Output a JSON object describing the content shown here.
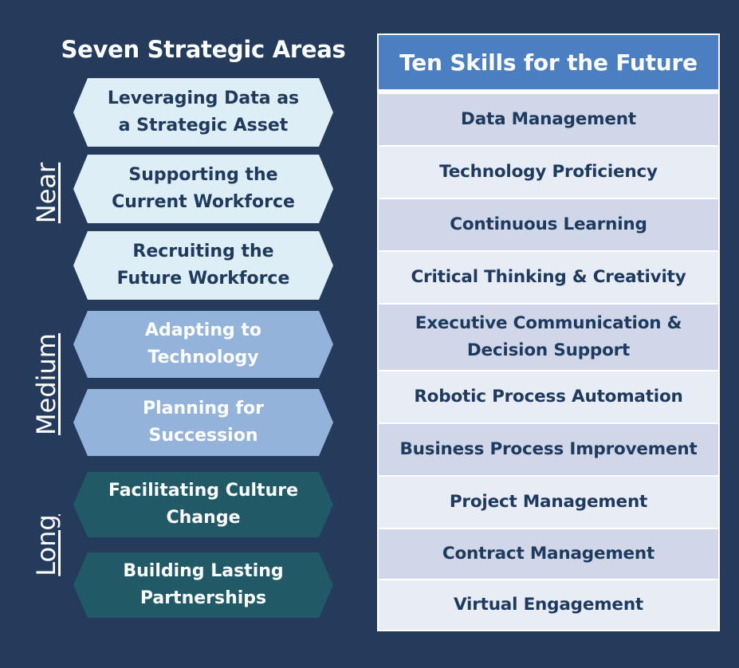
{
  "left": {
    "title": "Seven Strategic Areas",
    "horizons": {
      "near": "Near",
      "medium": "Medium",
      "long": "Long"
    },
    "areas": [
      {
        "line1": "Leveraging Data as",
        "line2": "a Strategic Asset",
        "horizon": "near"
      },
      {
        "line1": "Supporting the",
        "line2": "Current Workforce",
        "horizon": "near"
      },
      {
        "line1": "Recruiting the",
        "line2": "Future Workforce",
        "horizon": "near"
      },
      {
        "line1": "Adapting to",
        "line2": "Technology",
        "horizon": "medium"
      },
      {
        "line1": "Planning for",
        "line2": "Succession",
        "horizon": "medium"
      },
      {
        "line1": "Facilitating Culture",
        "line2": "Change",
        "horizon": "long"
      },
      {
        "line1": "Building Lasting",
        "line2": "Partnerships",
        "horizon": "long"
      }
    ]
  },
  "right": {
    "title": "Ten Skills for the Future",
    "skills": [
      {
        "line1": "Data Management"
      },
      {
        "line1": "Technology Proficiency"
      },
      {
        "line1": "Continuous Learning"
      },
      {
        "line1": "Critical Thinking & Creativity"
      },
      {
        "line1": "Executive Communication &",
        "line2": "Decision Support"
      },
      {
        "line1": "Robotic Process Automation"
      },
      {
        "line1": "Business Process Improvement"
      },
      {
        "line1": "Project Management"
      },
      {
        "line1": "Contract Management"
      },
      {
        "line1": "Virtual Engagement"
      }
    ]
  },
  "colors": {
    "background": "#243b5c",
    "near": "#ddeef6",
    "medium": "#93b3db",
    "long": "#215966",
    "header": "#4b7fc1"
  }
}
